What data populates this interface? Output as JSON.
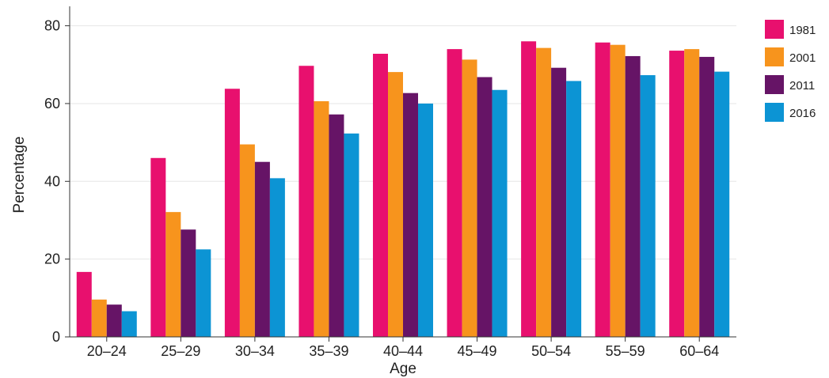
{
  "chart_data": {
    "type": "bar",
    "title": "",
    "xlabel": "Age",
    "ylabel": "Percentage",
    "ylim": [
      0,
      85
    ],
    "yticks": [
      0,
      20,
      40,
      60,
      80
    ],
    "grid": true,
    "legend_position": "right",
    "categories": [
      "20–24",
      "25–29",
      "30–34",
      "35–39",
      "40–44",
      "45–49",
      "50–54",
      "55–59",
      "60–64"
    ],
    "series": [
      {
        "name": "1981",
        "color": "#E8106E",
        "values": [
          16.7,
          46.0,
          63.8,
          69.7,
          72.8,
          74.0,
          76.0,
          75.7,
          73.6
        ]
      },
      {
        "name": "2001",
        "color": "#F7941D",
        "values": [
          9.6,
          32.1,
          49.5,
          60.6,
          68.1,
          71.3,
          74.3,
          75.1,
          74.0
        ]
      },
      {
        "name": "2011",
        "color": "#661466",
        "values": [
          8.3,
          27.6,
          45.0,
          57.2,
          62.7,
          66.8,
          69.2,
          72.2,
          72.0
        ]
      },
      {
        "name": "2016",
        "color": "#0C94D4",
        "values": [
          6.6,
          22.5,
          40.8,
          52.3,
          60.0,
          63.5,
          65.8,
          67.3,
          68.2
        ]
      }
    ]
  }
}
